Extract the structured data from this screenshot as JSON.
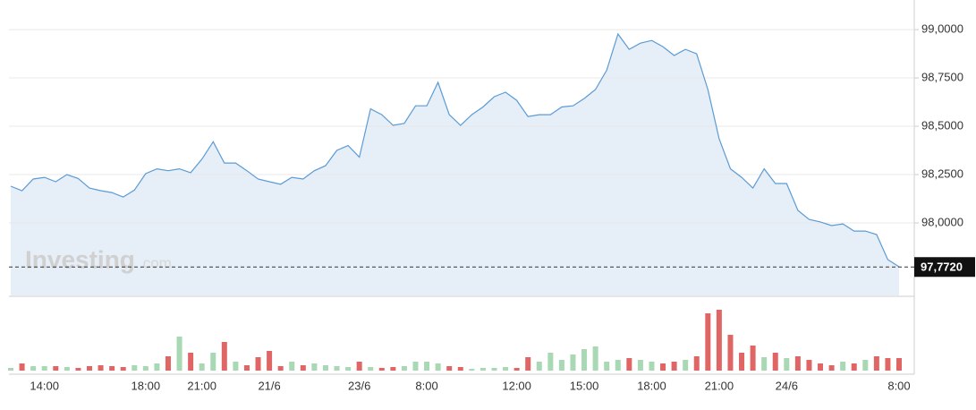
{
  "chart_data": [
    {
      "type": "area",
      "categories": [
        null,
        null,
        null,
        "14:00",
        null,
        null,
        null,
        null,
        null,
        null,
        null,
        null,
        "18:00",
        null,
        null,
        null,
        null,
        "21:00",
        null,
        null,
        null,
        null,
        null,
        "21/6",
        null,
        null,
        null,
        null,
        null,
        null,
        null,
        "23/6",
        null,
        null,
        null,
        null,
        null,
        "8:00",
        null,
        null,
        null,
        null,
        null,
        null,
        null,
        "12:00",
        null,
        null,
        null,
        null,
        null,
        "15:00",
        null,
        null,
        null,
        null,
        null,
        "18:00",
        null,
        null,
        null,
        null,
        null,
        "21:00",
        null,
        null,
        null,
        null,
        null,
        "24/6",
        null,
        null,
        null,
        null,
        null,
        null,
        null,
        null,
        null,
        "8:00"
      ],
      "series": [
        {
          "color": "#5b9bd5",
          "fill": "#e6eef7",
          "values": [
            98.19,
            98.167,
            98.227,
            98.236,
            98.213,
            98.25,
            98.23,
            98.18,
            98.167,
            98.157,
            98.134,
            98.17,
            98.255,
            98.28,
            98.27,
            98.28,
            98.26,
            98.33,
            98.42,
            98.31,
            98.31,
            98.27,
            98.227,
            98.213,
            98.2,
            98.236,
            98.227,
            98.27,
            98.296,
            98.375,
            98.4,
            98.34,
            98.59,
            98.56,
            98.505,
            98.515,
            98.606,
            98.606,
            98.727,
            98.56,
            98.505,
            98.56,
            98.6,
            98.653,
            98.676,
            98.634,
            98.55,
            98.56,
            98.56,
            98.6,
            98.606,
            98.644,
            98.69,
            98.79,
            98.977,
            98.898,
            98.93,
            98.944,
            98.912,
            98.866,
            98.898,
            98.875,
            98.69,
            98.435,
            98.28,
            98.236,
            98.18,
            98.28,
            98.204,
            98.204,
            98.065,
            98.018,
            98.005,
            97.986,
            97.995,
            97.958,
            97.958,
            97.94,
            97.81,
            97.773
          ]
        }
      ],
      "ylim": [
        97.625,
        99.13
      ],
      "yticks": [
        {
          "value": 98,
          "label": "98,0000"
        },
        {
          "value": 98.25,
          "label": "98,2500"
        },
        {
          "value": 98.5,
          "label": "98,5000"
        },
        {
          "value": 98.75,
          "label": "98,7500"
        },
        {
          "value": 99,
          "label": "99,0000"
        }
      ],
      "grid": true,
      "current": {
        "value": 97.772,
        "label": "97,7720"
      },
      "watermark": {
        "brand": "Investing",
        "suffix": ".com"
      }
    },
    {
      "type": "bar",
      "values": [
        3,
        8,
        5,
        5,
        5,
        4,
        3,
        5,
        6,
        5,
        4,
        6,
        5,
        8,
        16,
        38,
        20,
        8,
        20,
        32,
        10,
        6,
        15,
        22,
        5,
        10,
        6,
        8,
        6,
        5,
        4,
        10,
        4,
        3,
        4,
        5,
        10,
        10,
        8,
        5,
        4,
        2,
        3,
        3,
        4,
        3,
        15,
        10,
        20,
        12,
        18,
        24,
        27,
        10,
        12,
        14,
        12,
        10,
        8,
        10,
        12,
        16,
        64,
        68,
        40,
        20,
        28,
        15,
        20,
        14,
        16,
        12,
        8,
        6,
        10,
        8,
        12,
        16,
        14,
        14
      ],
      "ylim": [
        0,
        80
      ],
      "up_color": "#a8d8b4",
      "down_color": "#e06666"
    }
  ]
}
